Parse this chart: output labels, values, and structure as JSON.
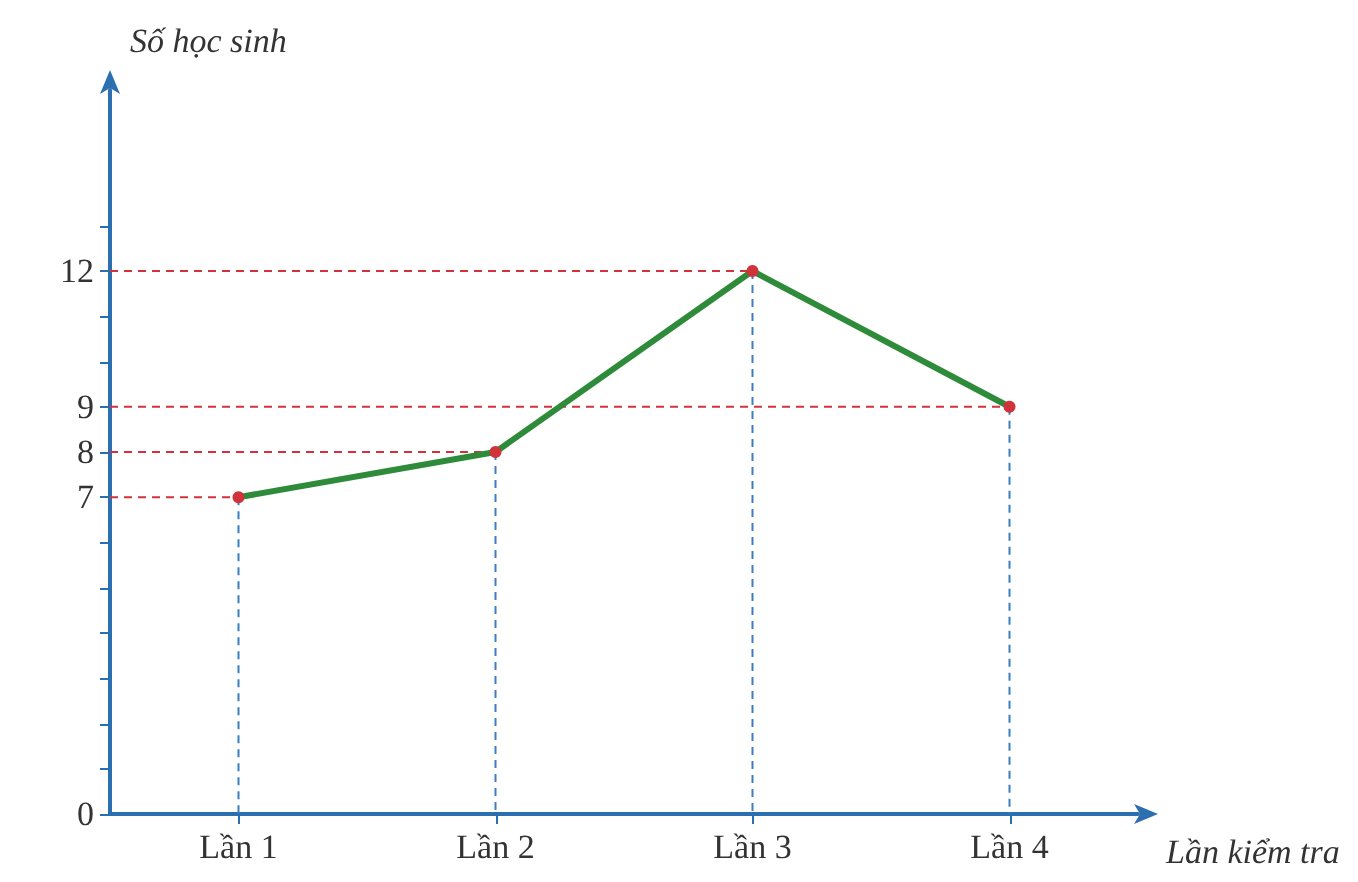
{
  "chart_data": {
    "type": "line",
    "xlabel": "Lần kiểm tra",
    "ylabel": "Số học sinh",
    "categories": [
      "Lần 1",
      "Lần 2",
      "Lần 3",
      "Lần 4"
    ],
    "series": [
      {
        "color": "#2e8b3a",
        "values": [
          7,
          8,
          12,
          9
        ]
      }
    ],
    "ylim": [
      0,
      16
    ],
    "yticks": [
      0,
      {
        "value": 1,
        "label": null
      },
      {
        "value": 2,
        "label": null
      },
      {
        "value": 3,
        "label": null
      },
      {
        "value": 4,
        "label": null
      },
      {
        "value": 5,
        "label": null
      },
      {
        "value": 6,
        "label": null
      },
      7,
      8,
      9,
      {
        "value": 10,
        "label": null
      },
      {
        "value": 11,
        "label": null
      },
      12,
      {
        "value": 13,
        "label": null
      }
    ],
    "ref_lines": [
      {
        "axis": "y",
        "value": 7,
        "color": "#d0343a",
        "line_style": "dashed"
      },
      {
        "axis": "y",
        "value": 8,
        "color": "#d0343a",
        "line_style": "dashed"
      },
      {
        "axis": "y",
        "value": 12,
        "color": "#d0343a",
        "line_style": "dashed"
      },
      {
        "axis": "y",
        "value": 9,
        "color": "#d0343a",
        "line_style": "dashed"
      },
      {
        "axis": "x",
        "value": "Lần 1",
        "color": "#3a7fc0",
        "line_style": "dashed"
      },
      {
        "axis": "x",
        "value": "Lần 2",
        "color": "#3a7fc0",
        "line_style": "dashed"
      },
      {
        "axis": "x",
        "value": "Lần 3",
        "color": "#3a7fc0",
        "line_style": "dashed"
      },
      {
        "axis": "x",
        "value": "Lần 4",
        "color": "#3a7fc0",
        "line_style": "dashed"
      }
    ],
    "marker": "circle",
    "grid": false
  }
}
